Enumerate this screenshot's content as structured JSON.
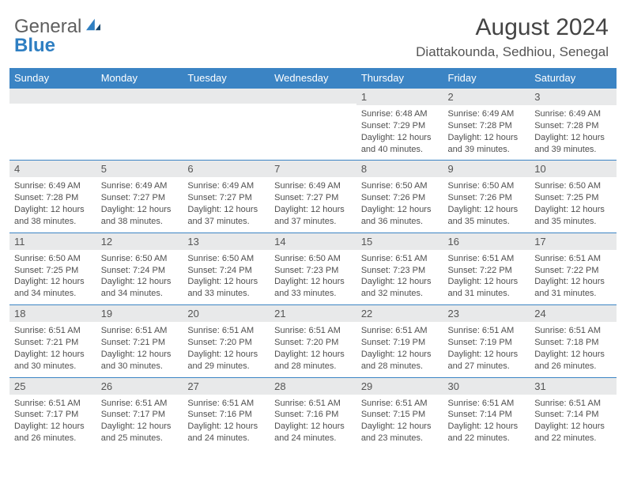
{
  "logo": {
    "general": "General",
    "blue": "Blue"
  },
  "title": "August 2024",
  "location": "Diattakounda, Sedhiou, Senegal",
  "colors": {
    "header_bg": "#3b84c4",
    "header_text": "#ffffff",
    "daynum_bg": "#e8e9ea",
    "row_border": "#3b84c4",
    "body_text": "#4f4f4f",
    "logo_gray": "#5f5f5f",
    "logo_blue": "#2f7fc2"
  },
  "day_headers": [
    "Sunday",
    "Monday",
    "Tuesday",
    "Wednesday",
    "Thursday",
    "Friday",
    "Saturday"
  ],
  "weeks": [
    [
      {
        "n": "",
        "sr": "",
        "ss": "",
        "dl": ""
      },
      {
        "n": "",
        "sr": "",
        "ss": "",
        "dl": ""
      },
      {
        "n": "",
        "sr": "",
        "ss": "",
        "dl": ""
      },
      {
        "n": "",
        "sr": "",
        "ss": "",
        "dl": ""
      },
      {
        "n": "1",
        "sr": "6:48 AM",
        "ss": "7:29 PM",
        "dl": "12 hours and 40 minutes."
      },
      {
        "n": "2",
        "sr": "6:49 AM",
        "ss": "7:28 PM",
        "dl": "12 hours and 39 minutes."
      },
      {
        "n": "3",
        "sr": "6:49 AM",
        "ss": "7:28 PM",
        "dl": "12 hours and 39 minutes."
      }
    ],
    [
      {
        "n": "4",
        "sr": "6:49 AM",
        "ss": "7:28 PM",
        "dl": "12 hours and 38 minutes."
      },
      {
        "n": "5",
        "sr": "6:49 AM",
        "ss": "7:27 PM",
        "dl": "12 hours and 38 minutes."
      },
      {
        "n": "6",
        "sr": "6:49 AM",
        "ss": "7:27 PM",
        "dl": "12 hours and 37 minutes."
      },
      {
        "n": "7",
        "sr": "6:49 AM",
        "ss": "7:27 PM",
        "dl": "12 hours and 37 minutes."
      },
      {
        "n": "8",
        "sr": "6:50 AM",
        "ss": "7:26 PM",
        "dl": "12 hours and 36 minutes."
      },
      {
        "n": "9",
        "sr": "6:50 AM",
        "ss": "7:26 PM",
        "dl": "12 hours and 35 minutes."
      },
      {
        "n": "10",
        "sr": "6:50 AM",
        "ss": "7:25 PM",
        "dl": "12 hours and 35 minutes."
      }
    ],
    [
      {
        "n": "11",
        "sr": "6:50 AM",
        "ss": "7:25 PM",
        "dl": "12 hours and 34 minutes."
      },
      {
        "n": "12",
        "sr": "6:50 AM",
        "ss": "7:24 PM",
        "dl": "12 hours and 34 minutes."
      },
      {
        "n": "13",
        "sr": "6:50 AM",
        "ss": "7:24 PM",
        "dl": "12 hours and 33 minutes."
      },
      {
        "n": "14",
        "sr": "6:50 AM",
        "ss": "7:23 PM",
        "dl": "12 hours and 33 minutes."
      },
      {
        "n": "15",
        "sr": "6:51 AM",
        "ss": "7:23 PM",
        "dl": "12 hours and 32 minutes."
      },
      {
        "n": "16",
        "sr": "6:51 AM",
        "ss": "7:22 PM",
        "dl": "12 hours and 31 minutes."
      },
      {
        "n": "17",
        "sr": "6:51 AM",
        "ss": "7:22 PM",
        "dl": "12 hours and 31 minutes."
      }
    ],
    [
      {
        "n": "18",
        "sr": "6:51 AM",
        "ss": "7:21 PM",
        "dl": "12 hours and 30 minutes."
      },
      {
        "n": "19",
        "sr": "6:51 AM",
        "ss": "7:21 PM",
        "dl": "12 hours and 30 minutes."
      },
      {
        "n": "20",
        "sr": "6:51 AM",
        "ss": "7:20 PM",
        "dl": "12 hours and 29 minutes."
      },
      {
        "n": "21",
        "sr": "6:51 AM",
        "ss": "7:20 PM",
        "dl": "12 hours and 28 minutes."
      },
      {
        "n": "22",
        "sr": "6:51 AM",
        "ss": "7:19 PM",
        "dl": "12 hours and 28 minutes."
      },
      {
        "n": "23",
        "sr": "6:51 AM",
        "ss": "7:19 PM",
        "dl": "12 hours and 27 minutes."
      },
      {
        "n": "24",
        "sr": "6:51 AM",
        "ss": "7:18 PM",
        "dl": "12 hours and 26 minutes."
      }
    ],
    [
      {
        "n": "25",
        "sr": "6:51 AM",
        "ss": "7:17 PM",
        "dl": "12 hours and 26 minutes."
      },
      {
        "n": "26",
        "sr": "6:51 AM",
        "ss": "7:17 PM",
        "dl": "12 hours and 25 minutes."
      },
      {
        "n": "27",
        "sr": "6:51 AM",
        "ss": "7:16 PM",
        "dl": "12 hours and 24 minutes."
      },
      {
        "n": "28",
        "sr": "6:51 AM",
        "ss": "7:16 PM",
        "dl": "12 hours and 24 minutes."
      },
      {
        "n": "29",
        "sr": "6:51 AM",
        "ss": "7:15 PM",
        "dl": "12 hours and 23 minutes."
      },
      {
        "n": "30",
        "sr": "6:51 AM",
        "ss": "7:14 PM",
        "dl": "12 hours and 22 minutes."
      },
      {
        "n": "31",
        "sr": "6:51 AM",
        "ss": "7:14 PM",
        "dl": "12 hours and 22 minutes."
      }
    ]
  ],
  "labels": {
    "sunrise": "Sunrise: ",
    "sunset": "Sunset: ",
    "daylight": "Daylight: "
  }
}
